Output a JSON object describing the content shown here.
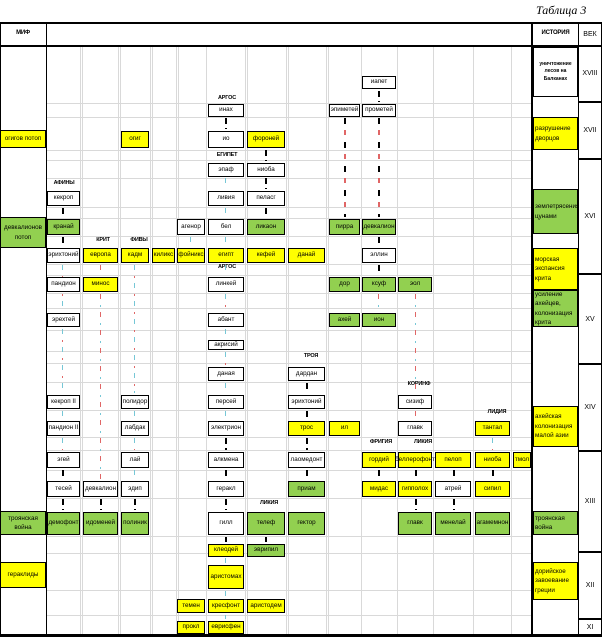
{
  "title": "Таблица 3",
  "header": {
    "myth": "МИФ",
    "history": "ИСТОРИЯ",
    "century": "ВЕК"
  },
  "myth_events": [
    {
      "label": "огигов потоп",
      "fill": "yellow"
    },
    {
      "label": "девкалионов потоп",
      "fill": "green"
    },
    {
      "label": "троянская война",
      "fill": "green"
    },
    {
      "label": "гераклиды",
      "fill": "yellow"
    }
  ],
  "history_events": [
    {
      "label": "уничтожение лесов на Балканах",
      "fill": "white"
    },
    {
      "label": "разрушение дворцов",
      "fill": "yellow"
    },
    {
      "label": "землетрясения цунами",
      "fill": "green"
    },
    {
      "label": "морская экспансия крита",
      "fill": "yellow"
    },
    {
      "label": "усиление ахейцев, колонизация крита",
      "fill": "green"
    },
    {
      "label": "ахейская колонизация малой азии",
      "fill": "yellow"
    },
    {
      "label": "троянская война",
      "fill": "green"
    },
    {
      "label": "дорийское завоевание греции",
      "fill": "yellow"
    }
  ],
  "centuries": [
    "XVIII",
    "XVII",
    "XVI",
    "XV",
    "XIV",
    "XIII",
    "XII",
    "XI"
  ],
  "regions": [
    "АРГОС",
    "ЕГИПЕТ",
    "АФИНЫ",
    "КРИТ",
    "ФИВЫ",
    "АРГОС",
    "ТРОЯ",
    "КОРИНФ",
    "ЛИДИЯ",
    "ФРИГИЯ",
    "ЛИКИЯ",
    "ЛИКИЯ"
  ],
  "persons": [
    {
      "label": "иапет",
      "fill": "white"
    },
    {
      "label": "инах",
      "fill": "white"
    },
    {
      "label": "эпиметей",
      "fill": "white"
    },
    {
      "label": "прометей",
      "fill": "white"
    },
    {
      "label": "огиг",
      "fill": "yellow"
    },
    {
      "label": "ио",
      "fill": "white"
    },
    {
      "label": "фороней",
      "fill": "yellow"
    },
    {
      "label": "эпаф",
      "fill": "white"
    },
    {
      "label": "ниоба",
      "fill": "white"
    },
    {
      "label": "кекроп",
      "fill": "white"
    },
    {
      "label": "ливия",
      "fill": "white"
    },
    {
      "label": "пеласг",
      "fill": "white"
    },
    {
      "label": "кранай",
      "fill": "green"
    },
    {
      "label": "агенор",
      "fill": "white"
    },
    {
      "label": "бел",
      "fill": "white"
    },
    {
      "label": "ликаон",
      "fill": "green"
    },
    {
      "label": "пирра",
      "fill": "green"
    },
    {
      "label": "девкалион",
      "fill": "green"
    },
    {
      "label": "эрихтоний",
      "fill": "white"
    },
    {
      "label": "европа",
      "fill": "yellow"
    },
    {
      "label": "кадм",
      "fill": "yellow"
    },
    {
      "label": "киликс",
      "fill": "yellow"
    },
    {
      "label": "фойникс",
      "fill": "yellow"
    },
    {
      "label": "египт",
      "fill": "yellow"
    },
    {
      "label": "кефей",
      "fill": "yellow"
    },
    {
      "label": "данай",
      "fill": "yellow"
    },
    {
      "label": "эллин",
      "fill": "white"
    },
    {
      "label": "пандион",
      "fill": "white"
    },
    {
      "label": "минос",
      "fill": "yellow"
    },
    {
      "label": "линкей",
      "fill": "white"
    },
    {
      "label": "дор",
      "fill": "green"
    },
    {
      "label": "ксуф",
      "fill": "green"
    },
    {
      "label": "эол",
      "fill": "green"
    },
    {
      "label": "эрехтей",
      "fill": "white"
    },
    {
      "label": "абант",
      "fill": "white"
    },
    {
      "label": "ахей",
      "fill": "green"
    },
    {
      "label": "ион",
      "fill": "green"
    },
    {
      "label": "акрисий",
      "fill": "white"
    },
    {
      "label": "даная",
      "fill": "white"
    },
    {
      "label": "дардан",
      "fill": "white"
    },
    {
      "label": "кекроп II",
      "fill": "white"
    },
    {
      "label": "полидор",
      "fill": "white"
    },
    {
      "label": "персей",
      "fill": "white"
    },
    {
      "label": "эрихтоний",
      "fill": "white"
    },
    {
      "label": "сизиф",
      "fill": "white"
    },
    {
      "label": "пандион II",
      "fill": "white"
    },
    {
      "label": "лабдак",
      "fill": "white"
    },
    {
      "label": "электрион",
      "fill": "white"
    },
    {
      "label": "трос",
      "fill": "yellow"
    },
    {
      "label": "ил",
      "fill": "yellow"
    },
    {
      "label": "главк",
      "fill": "white"
    },
    {
      "label": "тантал",
      "fill": "yellow"
    },
    {
      "label": "эгей",
      "fill": "white"
    },
    {
      "label": "лай",
      "fill": "white"
    },
    {
      "label": "алкмена",
      "fill": "white"
    },
    {
      "label": "лаомедонт",
      "fill": "white"
    },
    {
      "label": "гордий",
      "fill": "yellow"
    },
    {
      "label": "беллерофонт",
      "fill": "yellow"
    },
    {
      "label": "пелоп",
      "fill": "yellow"
    },
    {
      "label": "ниоба",
      "fill": "yellow"
    },
    {
      "label": "тмол",
      "fill": "yellow"
    },
    {
      "label": "тесей",
      "fill": "white"
    },
    {
      "label": "девкалион",
      "fill": "white"
    },
    {
      "label": "эдип",
      "fill": "white"
    },
    {
      "label": "геракл",
      "fill": "white"
    },
    {
      "label": "приам",
      "fill": "green"
    },
    {
      "label": "мидас",
      "fill": "yellow"
    },
    {
      "label": "гипполох",
      "fill": "yellow"
    },
    {
      "label": "атрей",
      "fill": "white"
    },
    {
      "label": "сипил",
      "fill": "yellow"
    },
    {
      "label": "демофонт",
      "fill": "green"
    },
    {
      "label": "идоменей",
      "fill": "green"
    },
    {
      "label": "полиник",
      "fill": "green"
    },
    {
      "label": "гилл",
      "fill": "white"
    },
    {
      "label": "телеф",
      "fill": "green"
    },
    {
      "label": "гектор",
      "fill": "green"
    },
    {
      "label": "главк",
      "fill": "green"
    },
    {
      "label": "менелай",
      "fill": "green"
    },
    {
      "label": "агамемнон",
      "fill": "green"
    },
    {
      "label": "клеодей",
      "fill": "yellow"
    },
    {
      "label": "эврипил",
      "fill": "green"
    },
    {
      "label": "аристомах",
      "fill": "yellow"
    },
    {
      "label": "темен",
      "fill": "yellow"
    },
    {
      "label": "кресфонт",
      "fill": "yellow"
    },
    {
      "label": "аристодем",
      "fill": "yellow"
    },
    {
      "label": "прокл",
      "fill": "yellow"
    },
    {
      "label": "еврисфен",
      "fill": "yellow"
    }
  ],
  "colors": {
    "yellow": "#ffff00",
    "green": "#92d050",
    "grid": "#d9d9d9",
    "dash_red": "#e06666",
    "dash_cyan": "#76c7d6"
  }
}
